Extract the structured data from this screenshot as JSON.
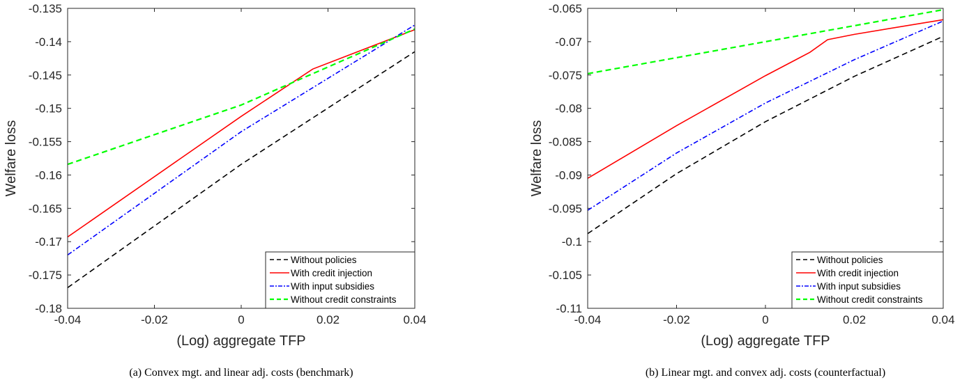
{
  "chart_data": [
    {
      "type": "line",
      "caption": "(a) Convex mgt. and linear adj. costs (benchmark)",
      "xlabel": "(Log) aggregate TFP",
      "ylabel": "Welfare loss",
      "xlim": [
        -0.04,
        0.04
      ],
      "ylim": [
        -0.18,
        -0.135
      ],
      "xticks": [
        "-0.04",
        "-0.02",
        "0",
        "0.02",
        "0.04"
      ],
      "yticks": [
        "-0.135",
        "-0.14",
        "-0.145",
        "-0.15",
        "-0.155",
        "-0.16",
        "-0.165",
        "-0.17",
        "-0.175",
        "-0.18"
      ],
      "legend_position": "bottom-right",
      "series": [
        {
          "name": "Without policies",
          "color": "#000000",
          "dash": "dashed",
          "x": [
            -0.04,
            0,
            0.04
          ],
          "y": [
            -0.1769,
            -0.1584,
            -0.1415
          ]
        },
        {
          "name": "With credit injection",
          "color": "#ff0000",
          "dash": "solid",
          "x": [
            -0.04,
            0,
            0.0165,
            0.04
          ],
          "y": [
            -0.1693,
            -0.1512,
            -0.1441,
            -0.1382
          ]
        },
        {
          "name": "With input subsidies",
          "color": "#0000ff",
          "dash": "dashdot",
          "x": [
            -0.04,
            0,
            0.04
          ],
          "y": [
            -0.172,
            -0.1535,
            -0.1375
          ]
        },
        {
          "name": "Without credit constraints",
          "color": "#00ff00",
          "dash": "dashed",
          "x": [
            -0.04,
            0,
            0.04
          ],
          "y": [
            -0.1584,
            -0.1495,
            -0.1381
          ]
        }
      ]
    },
    {
      "type": "line",
      "caption": "(b) Linear mgt. and convex adj. costs (counterfactual)",
      "xlabel": "(Log) aggregate TFP",
      "ylabel": "Welfare loss",
      "xlim": [
        -0.04,
        0.04
      ],
      "ylim": [
        -0.11,
        -0.065
      ],
      "xticks": [
        "-0.04",
        "-0.02",
        "0",
        "0.02",
        "0.04"
      ],
      "yticks": [
        "-0.065",
        "-0.07",
        "-0.075",
        "-0.08",
        "-0.085",
        "-0.09",
        "-0.095",
        "-0.1",
        "-0.105",
        "-0.11"
      ],
      "legend_position": "bottom-right",
      "series": [
        {
          "name": "Without policies",
          "color": "#000000",
          "dash": "dashed",
          "x": [
            -0.04,
            -0.02,
            0,
            0.02,
            0.04
          ],
          "y": [
            -0.0988,
            -0.0898,
            -0.082,
            -0.0752,
            -0.0692
          ]
        },
        {
          "name": "With credit injection",
          "color": "#ff0000",
          "dash": "solid",
          "x": [
            -0.04,
            -0.02,
            0,
            0.01,
            0.014,
            0.02,
            0.04
          ],
          "y": [
            -0.0905,
            -0.0826,
            -0.0751,
            -0.0716,
            -0.0697,
            -0.0689,
            -0.0667
          ]
        },
        {
          "name": "With input subsidies",
          "color": "#0000ff",
          "dash": "dashdot",
          "x": [
            -0.04,
            -0.02,
            0,
            0.02,
            0.04
          ],
          "y": [
            -0.0953,
            -0.0867,
            -0.0792,
            -0.0727,
            -0.0669
          ]
        },
        {
          "name": "Without credit constraints",
          "color": "#00ff00",
          "dash": "dashed",
          "x": [
            -0.04,
            0,
            0.04
          ],
          "y": [
            -0.0748,
            -0.07,
            -0.0652
          ]
        }
      ]
    }
  ]
}
